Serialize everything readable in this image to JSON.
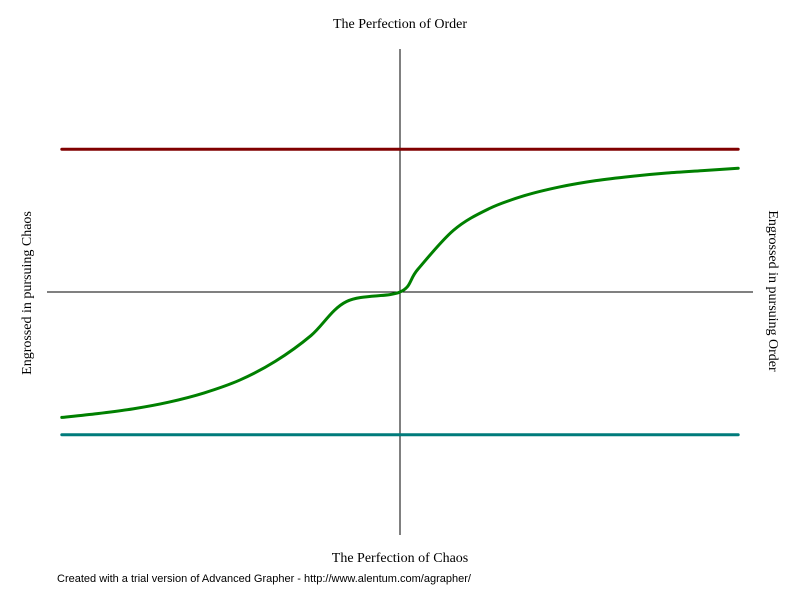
{
  "chart_data": {
    "type": "line",
    "title": "",
    "labels": {
      "top": "The Perfection of Order",
      "bottom": "The Perfection of Chaos",
      "left": "Engrossed in pursuing Chaos",
      "right": "Engrossed in pursuing Order"
    },
    "grid": false,
    "xlim": [
      -1,
      1
    ],
    "ylim": [
      -1,
      1
    ],
    "series": [
      {
        "color": "#800000",
        "points": [
          [
            -0.95,
            0.6
          ],
          [
            0.95,
            0.6
          ]
        ]
      },
      {
        "color": "#007b7b",
        "points": [
          [
            -0.95,
            -0.6
          ],
          [
            0.95,
            -0.6
          ]
        ]
      },
      {
        "color": "#008000",
        "points": [
          [
            -0.95,
            -0.527
          ],
          [
            -0.85,
            -0.511
          ],
          [
            -0.75,
            -0.491
          ],
          [
            -0.65,
            -0.463
          ],
          [
            -0.55,
            -0.424
          ],
          [
            -0.45,
            -0.37
          ],
          [
            -0.35,
            -0.291
          ],
          [
            -0.25,
            -0.183
          ],
          [
            -0.15,
            -0.04
          ],
          [
            0.0,
            0.0
          ],
          [
            0.05,
            0.095
          ],
          [
            0.15,
            0.259
          ],
          [
            0.25,
            0.35
          ],
          [
            0.35,
            0.405
          ],
          [
            0.45,
            0.442
          ],
          [
            0.55,
            0.468
          ],
          [
            0.65,
            0.486
          ],
          [
            0.75,
            0.5
          ],
          [
            0.85,
            0.51
          ],
          [
            0.95,
            0.52
          ]
        ]
      }
    ]
  },
  "footer": "Created with a trial version of Advanced Grapher - http://www.alentum.com/agrapher/",
  "colors": {
    "axis": "#000000",
    "upper_line": "#800000",
    "lower_line": "#007b7b",
    "curve": "#008000"
  }
}
